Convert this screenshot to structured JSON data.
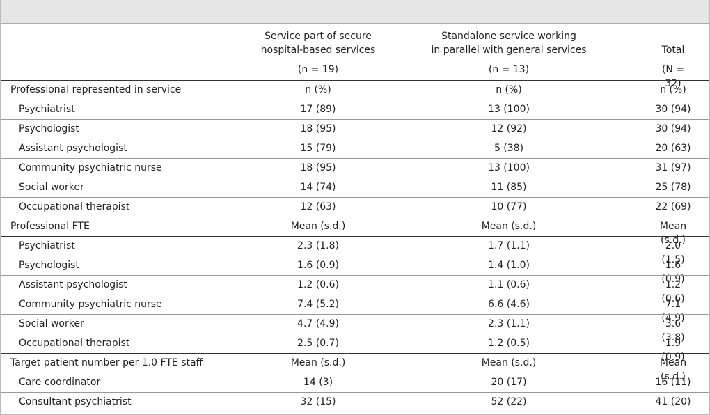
{
  "table": {
    "columns": [
      "Service part of secure\nhospital-based services",
      "Standalone service working\nin parallel with general services",
      "Total"
    ],
    "counts": [
      "(n = 19)",
      "(n = 13)",
      "(N = 32)"
    ],
    "sections": [
      {
        "title": "Professional represented in service",
        "units": [
          "n (%)",
          "n (%)",
          "n (%)"
        ],
        "rows": [
          {
            "label": "Psychiatrist",
            "cells": [
              "17 (89)",
              "13 (100)",
              "30 (94)"
            ]
          },
          {
            "label": "Psychologist",
            "cells": [
              "18 (95)",
              "12 (92)",
              "30 (94)"
            ]
          },
          {
            "label": "Assistant psychologist",
            "cells": [
              "15 (79)",
              "5 (38)",
              "20 (63)"
            ]
          },
          {
            "label": "Community psychiatric nurse",
            "cells": [
              "18 (95)",
              "13 (100)",
              "31 (97)"
            ]
          },
          {
            "label": "Social worker",
            "cells": [
              "14 (74)",
              "11 (85)",
              "25 (78)"
            ]
          },
          {
            "label": "Occupational therapist",
            "cells": [
              "12 (63)",
              "10 (77)",
              "22 (69)"
            ]
          }
        ]
      },
      {
        "title": "Professional FTE",
        "units": [
          "Mean (s.d.)",
          "Mean (s.d.)",
          "Mean (s.d.)"
        ],
        "rows": [
          {
            "label": "Psychiatrist",
            "cells": [
              "2.3 (1.8)",
              "1.7 (1.1)",
              "2.0 (1.5)"
            ]
          },
          {
            "label": "Psychologist",
            "cells": [
              "1.6 (0.9)",
              "1.4 (1.0)",
              "1.6 (0.9)"
            ]
          },
          {
            "label": "Assistant psychologist",
            "cells": [
              "1.2 (0.6)",
              "1.1 (0.6)",
              "1.2 (0.6)"
            ]
          },
          {
            "label": "Community psychiatric nurse",
            "cells": [
              "7.4 (5.2)",
              "6.6 (4.6)",
              "7.1 (4.9)"
            ]
          },
          {
            "label": "Social worker",
            "cells": [
              "4.7 (4.9)",
              "2.3 (1.1)",
              "3.6 (3.8)"
            ]
          },
          {
            "label": "Occupational therapist",
            "cells": [
              "2.5 (0.7)",
              "1.2 (0.5)",
              "1.9 (0.9)"
            ]
          }
        ]
      },
      {
        "title": "Target patient number per 1.0 FTE staff",
        "units": [
          "Mean (s.d.)",
          "Mean (s.d.)",
          "Mean (s.d.)"
        ],
        "rows": [
          {
            "label": "Care coordinator",
            "cells": [
              "14 (3)",
              "20 (17)",
              "16 (11)"
            ]
          },
          {
            "label": "Consultant psychiatrist",
            "cells": [
              "32 (15)",
              "52 (22)",
              "41 (20)"
            ]
          }
        ]
      }
    ]
  }
}
